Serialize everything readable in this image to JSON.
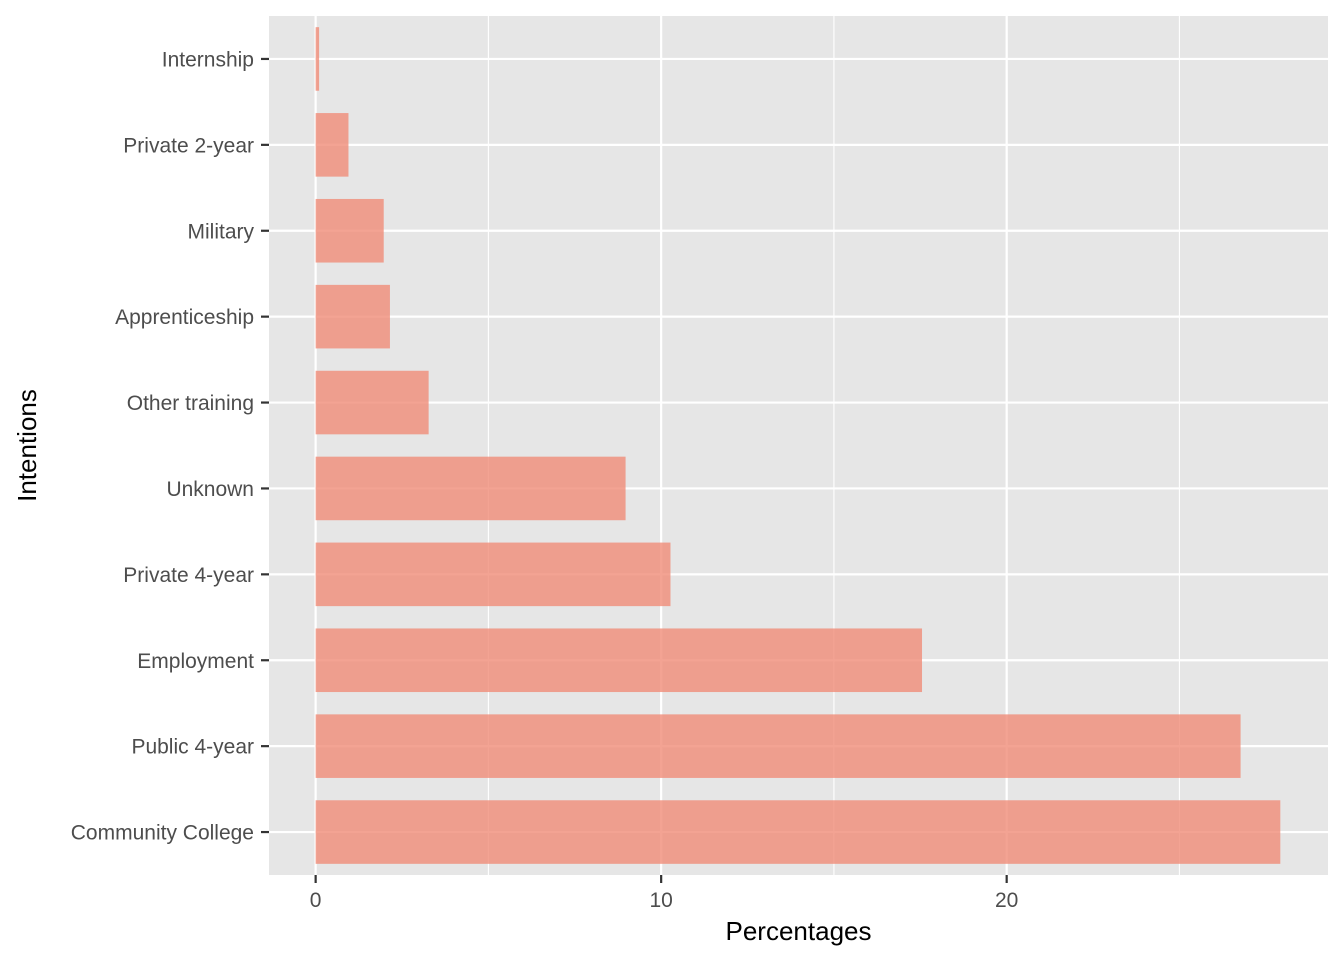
{
  "chart_data": {
    "type": "bar",
    "orientation": "horizontal",
    "title": "",
    "xlabel": "Percentages",
    "ylabel": "Intentions",
    "categories": [
      "Internship",
      "Private 2-year",
      "Military",
      "Apprenticeship",
      "Other training",
      "Unknown",
      "Private 4-year",
      "Employment",
      "Public 4-year",
      "Community College"
    ],
    "values": [
      0.1,
      0.95,
      1.97,
      2.15,
      3.27,
      8.97,
      10.27,
      17.55,
      26.77,
      27.92
    ],
    "xlim": [
      -1.35,
      29.3
    ],
    "xticks": [
      0,
      10,
      20
    ],
    "xtick_labels": [
      "0",
      "10",
      "20"
    ],
    "grid": true,
    "legend": "none",
    "colors": {
      "bar": "#f08c78",
      "panel": "#e6e6e6",
      "grid": "#ffffff"
    }
  }
}
